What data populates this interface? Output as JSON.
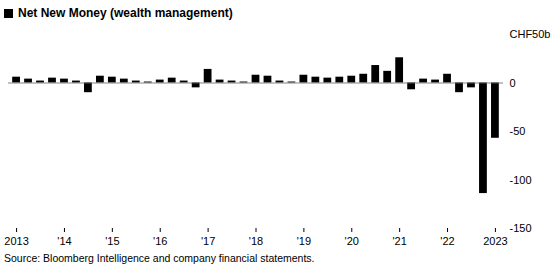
{
  "chart_data": {
    "type": "bar",
    "title": "Net New Money (wealth management)",
    "source": "Source: Bloomberg Intelligence and company financial statements.",
    "categories": [
      "2013",
      null,
      null,
      null,
      "'14",
      null,
      null,
      null,
      "'15",
      null,
      null,
      null,
      "'16",
      null,
      null,
      null,
      "'17",
      null,
      null,
      null,
      "'18",
      null,
      null,
      null,
      "'19",
      null,
      null,
      null,
      "'20",
      null,
      null,
      null,
      "'21",
      null,
      null,
      null,
      "'22",
      null,
      null,
      null,
      "2023"
    ],
    "values": [
      6,
      4,
      2,
      5,
      4,
      2,
      -10,
      7,
      6,
      4,
      2,
      1,
      3,
      5,
      2,
      -5,
      14,
      3,
      2,
      1,
      8,
      7,
      2,
      1,
      8,
      6,
      5,
      6,
      7,
      9,
      18,
      12,
      26,
      -7,
      4,
      3,
      9,
      -10,
      -5,
      -114,
      -57
    ],
    "color": "#000000",
    "ylim": [
      -150,
      50
    ],
    "yticks": [
      {
        "value": 50,
        "label": "CHF50b"
      },
      0,
      -50,
      -100,
      -150
    ],
    "grid": false
  }
}
